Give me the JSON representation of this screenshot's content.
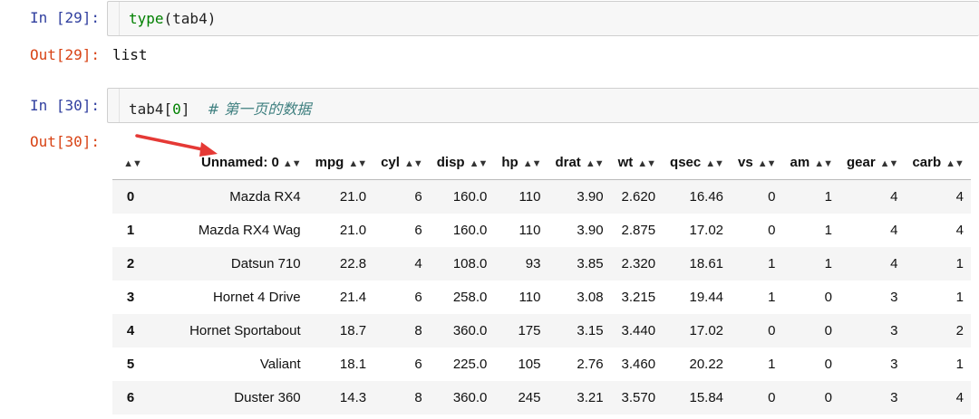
{
  "cells": [
    {
      "in_prompt": "In [29]:",
      "code_fn": "type",
      "code_rest": "(tab4)",
      "out_prompt": "Out[29]:",
      "output": "list"
    },
    {
      "in_prompt": "In [30]:",
      "code_var": "tab4[",
      "code_index": "0",
      "code_close": "]",
      "code_comment": "# 第一页的数据",
      "out_prompt": "Out[30]:"
    }
  ],
  "table": {
    "sort_glyph": "▲▼",
    "columns": [
      "Unnamed: 0",
      "mpg",
      "cyl",
      "disp",
      "hp",
      "drat",
      "wt",
      "qsec",
      "vs",
      "am",
      "gear",
      "carb"
    ],
    "rows": [
      {
        "index": "0",
        "values": [
          "Mazda RX4",
          "21.0",
          "6",
          "160.0",
          "110",
          "3.90",
          "2.620",
          "16.46",
          "0",
          "1",
          "4",
          "4"
        ]
      },
      {
        "index": "1",
        "values": [
          "Mazda RX4 Wag",
          "21.0",
          "6",
          "160.0",
          "110",
          "3.90",
          "2.875",
          "17.02",
          "0",
          "1",
          "4",
          "4"
        ]
      },
      {
        "index": "2",
        "values": [
          "Datsun 710",
          "22.8",
          "4",
          "108.0",
          "93",
          "3.85",
          "2.320",
          "18.61",
          "1",
          "1",
          "4",
          "1"
        ]
      },
      {
        "index": "3",
        "values": [
          "Hornet 4 Drive",
          "21.4",
          "6",
          "258.0",
          "110",
          "3.08",
          "3.215",
          "19.44",
          "1",
          "0",
          "3",
          "1"
        ]
      },
      {
        "index": "4",
        "values": [
          "Hornet Sportabout",
          "18.7",
          "8",
          "360.0",
          "175",
          "3.15",
          "3.440",
          "17.02",
          "0",
          "0",
          "3",
          "2"
        ]
      },
      {
        "index": "5",
        "values": [
          "Valiant",
          "18.1",
          "6",
          "225.0",
          "105",
          "2.76",
          "3.460",
          "20.22",
          "1",
          "0",
          "3",
          "1"
        ]
      },
      {
        "index": "6",
        "values": [
          "Duster 360",
          "14.3",
          "8",
          "360.0",
          "245",
          "3.21",
          "3.570",
          "15.84",
          "0",
          "0",
          "3",
          "4"
        ]
      }
    ]
  },
  "colors": {
    "in_prompt": "#303f9f",
    "out_prompt": "#d84315",
    "annotation_arrow": "#e53935"
  }
}
